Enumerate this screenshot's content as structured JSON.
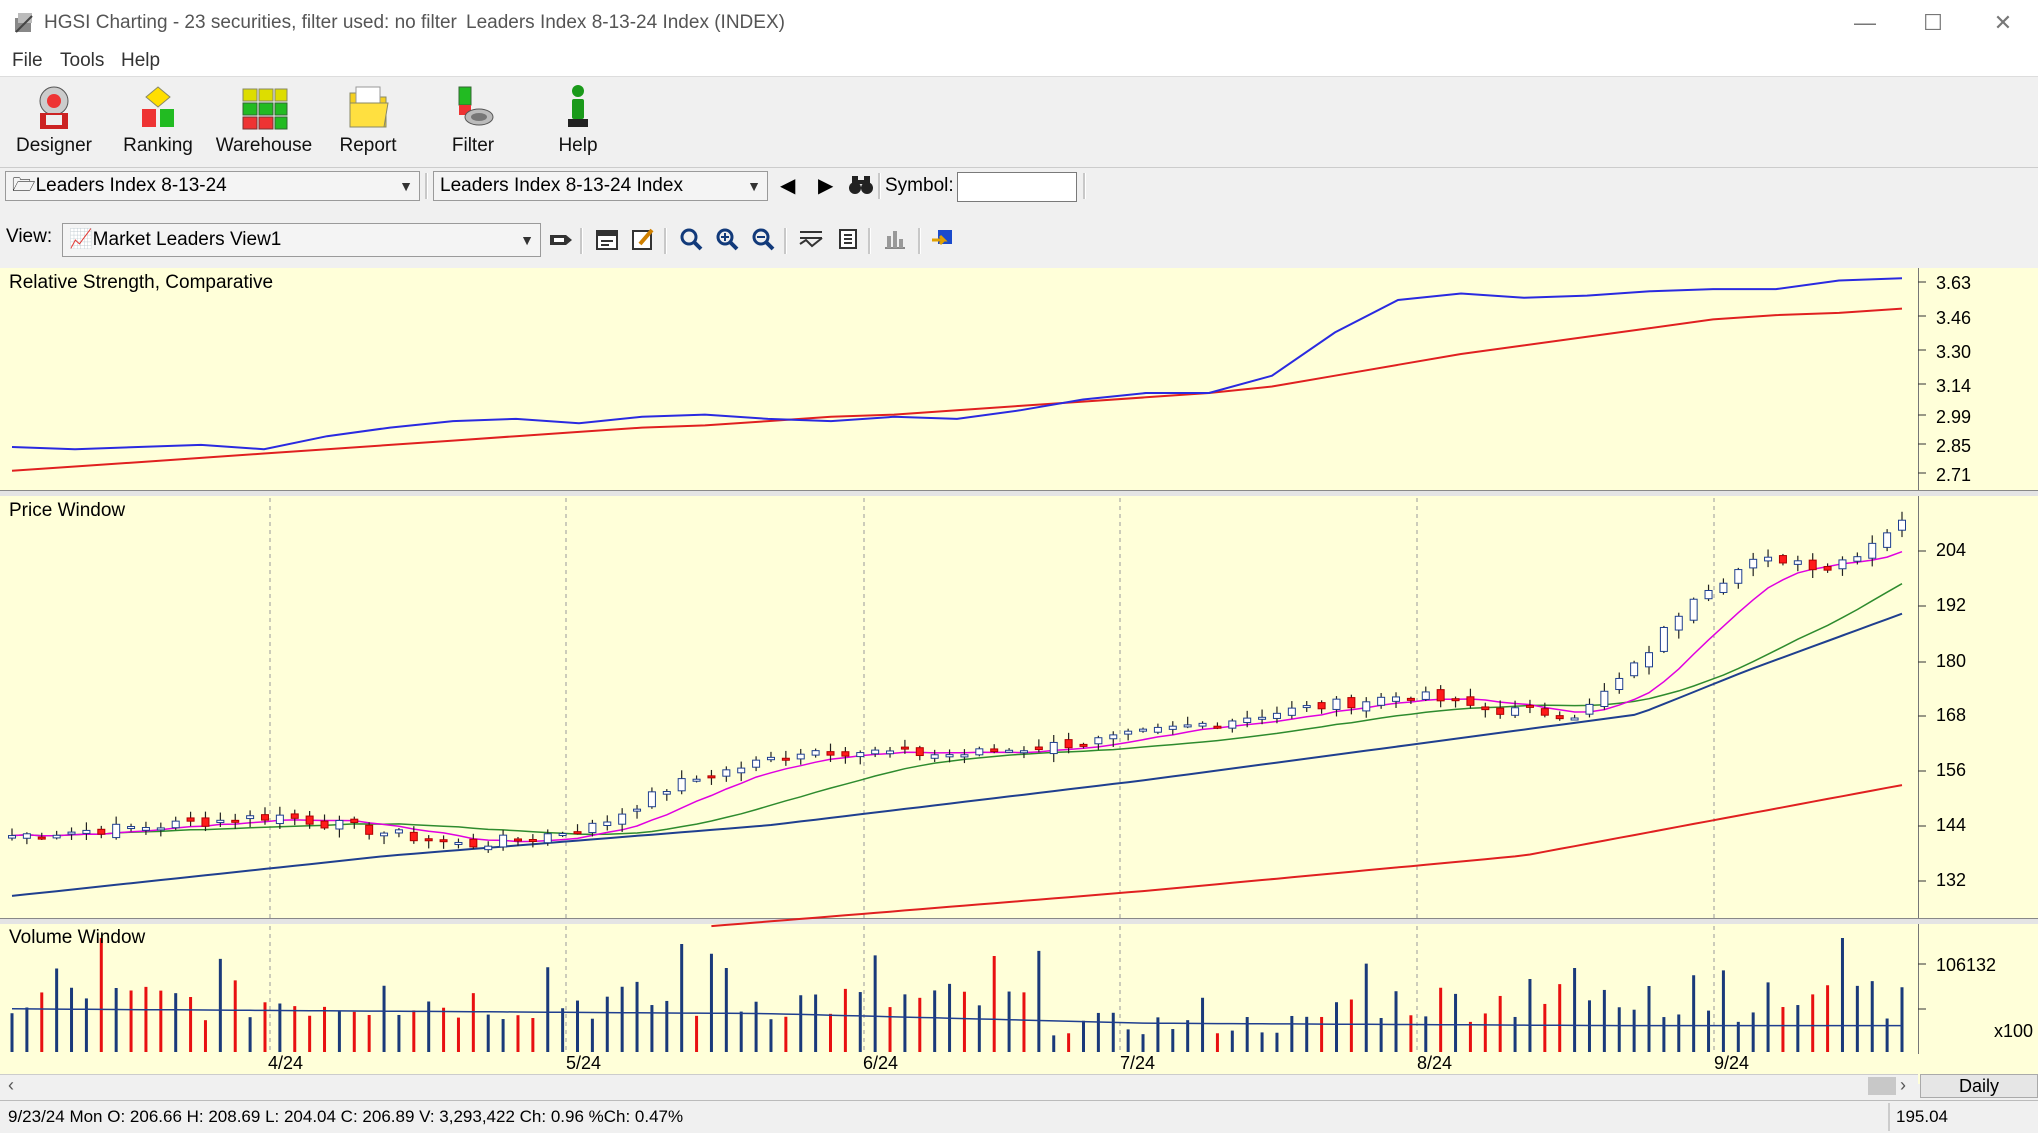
{
  "window": {
    "title": "HGSI Charting - 23 securities, filter used: no filter",
    "subtitle": "Leaders Index 8-13-24 Index (INDEX)",
    "controls": {
      "minimize": "—",
      "maximize": "☐",
      "close": "✕"
    }
  },
  "menu": [
    "File",
    "Tools",
    "Help"
  ],
  "toolbar": {
    "buttons": [
      {
        "label": "Designer",
        "icon": "designer-icon"
      },
      {
        "label": "Ranking",
        "icon": "ranking-icon"
      },
      {
        "label": "Warehouse",
        "icon": "warehouse-icon"
      },
      {
        "label": "Report",
        "icon": "report-folder-icon"
      },
      {
        "label": "Filter",
        "icon": "filter-icon"
      },
      {
        "label": "Help",
        "icon": "help-person-icon"
      }
    ]
  },
  "selectors": {
    "list": "Leaders Index 8-13-24",
    "security": "Leaders Index 8-13-24 Index",
    "symbol_label": "Symbol:",
    "symbol_value": "",
    "view_label": "View:",
    "view": "Market Leaders View1"
  },
  "colors": {
    "pane_bg": "#ffffd9",
    "rs_line": "#2a2ae0",
    "rs_avg": "#e02020",
    "up_candle": "#ffffff",
    "down_candle": "#ff1a1a",
    "ma_fast": "#e000e0",
    "ma_mid": "#2e8b2e",
    "ma_slow": "#1f3f8f",
    "ma_long": "#e02020",
    "vol_up": "#1a3a7a",
    "vol_down": "#e81010"
  },
  "panes": {
    "rs": {
      "title": "Relative Strength, Comparative",
      "ticks": [
        "3.63",
        "3.46",
        "3.30",
        "3.14",
        "2.99",
        "2.85",
        "2.71"
      ]
    },
    "price": {
      "title": "Price Window",
      "ticks": [
        "204",
        "192",
        "180",
        "168",
        "156",
        "144",
        "132"
      ]
    },
    "volume": {
      "title": "Volume Window",
      "ticks": [
        "106132"
      ],
      "multiplier": "x100"
    }
  },
  "x_labels": [
    "4/24",
    "5/24",
    "6/24",
    "7/24",
    "8/24",
    "9/24"
  ],
  "period": "Daily",
  "status": {
    "ohlc": "9/23/24 Mon O: 206.66 H: 208.69 L: 204.04 C: 206.89 V: 3,293,422 Ch: 0.96 %Ch: 0.47%",
    "cursor_value": "195.04"
  },
  "chart_data": {
    "type": "line",
    "title": "Relative Strength, Comparative",
    "x_range": [
      "3/24",
      "9/24"
    ],
    "rs_range": [
      2.71,
      3.63
    ],
    "price_range": [
      132,
      204
    ],
    "series": [
      {
        "values": [
          2.83,
          2.82,
          2.83,
          2.84,
          2.82,
          2.88,
          2.92,
          2.95,
          2.96,
          2.94,
          2.97,
          2.98,
          2.96,
          2.95,
          2.97,
          2.96,
          3.0,
          3.05,
          3.08,
          3.08,
          3.16,
          3.36,
          3.51,
          3.54,
          3.52,
          3.53,
          3.55,
          3.56,
          3.56,
          3.6,
          3.61
        ]
      },
      {
        "values": [
          2.72,
          2.74,
          2.76,
          2.78,
          2.8,
          2.82,
          2.84,
          2.86,
          2.88,
          2.9,
          2.92,
          2.93,
          2.95,
          2.97,
          2.98,
          3.0,
          3.02,
          3.04,
          3.06,
          3.08,
          3.11,
          3.16,
          3.21,
          3.26,
          3.3,
          3.34,
          3.38,
          3.42,
          3.44,
          3.45,
          3.47
        ]
      }
    ]
  }
}
